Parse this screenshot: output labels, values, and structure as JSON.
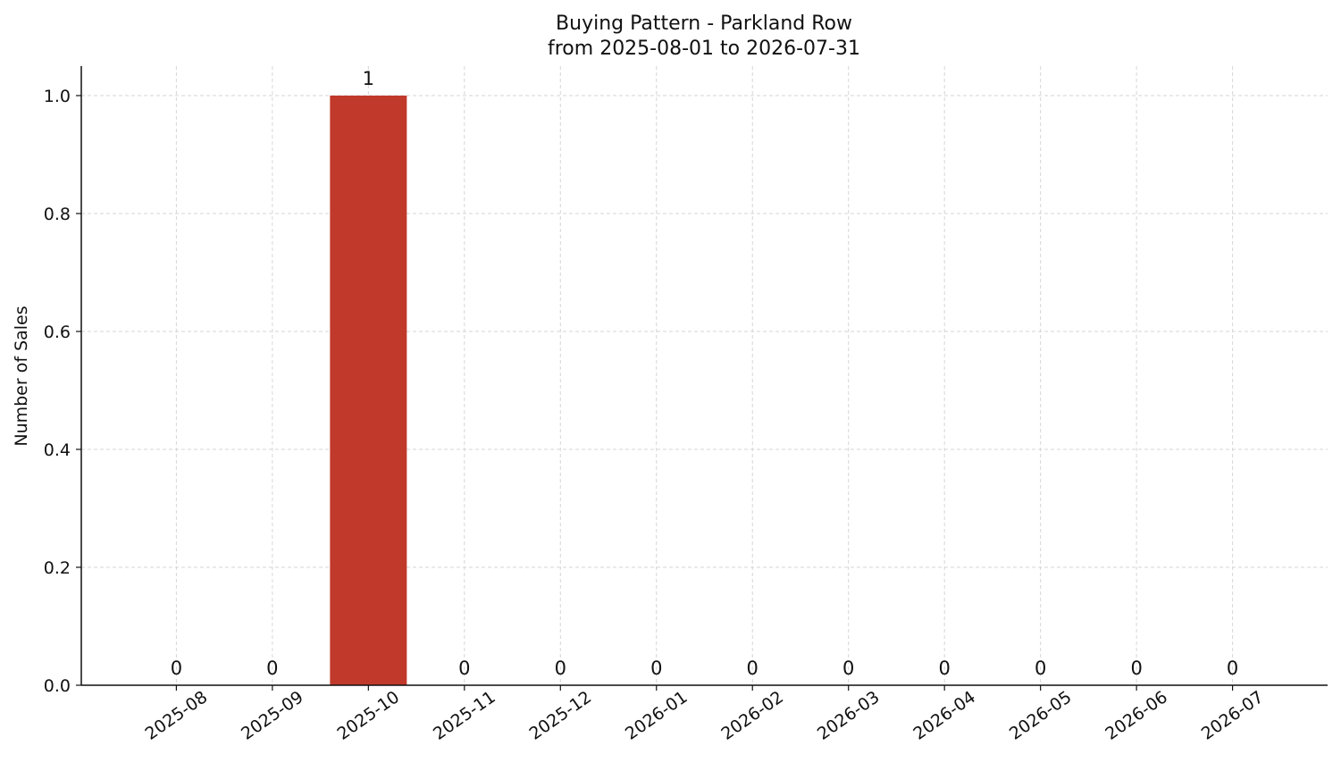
{
  "chart_data": {
    "type": "bar",
    "title": "Buying Pattern - Parkland Row",
    "subtitle": "from 2025-08-01 to 2026-07-31",
    "y_label": "Number of Sales",
    "categories": [
      "2025-08",
      "2025-09",
      "2025-10",
      "2025-11",
      "2025-12",
      "2026-01",
      "2026-02",
      "2026-03",
      "2026-04",
      "2026-05",
      "2026-06",
      "2026-07"
    ],
    "values": [
      0,
      0,
      1,
      0,
      0,
      0,
      0,
      0,
      0,
      0,
      0,
      0
    ],
    "color": "#c0392b",
    "ylim": [
      0,
      1.05
    ],
    "yticks": [
      {
        "value": 0,
        "label": "0.0"
      },
      0.2,
      0.4,
      0.6,
      0.8,
      {
        "value": 1,
        "label": "1.0"
      }
    ],
    "grid": true
  }
}
